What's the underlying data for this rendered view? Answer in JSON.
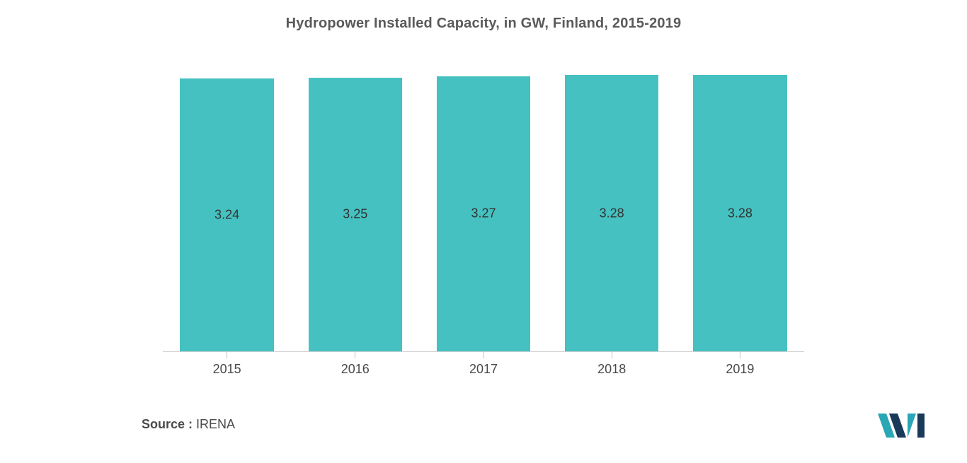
{
  "chart": {
    "type": "bar",
    "title": "Hydropower Installed Capacity, in GW, Finland, 2015-2019",
    "title_fontsize": 20,
    "title_color": "#5a5a5a",
    "categories": [
      "2015",
      "2016",
      "2017",
      "2018",
      "2019"
    ],
    "values": [
      3.24,
      3.25,
      3.27,
      3.28,
      3.28
    ],
    "value_labels": [
      "3.24",
      "3.25",
      "3.27",
      "3.28",
      "3.28"
    ],
    "bar_color": "#45c1c1",
    "bar_label_color": "#333333",
    "bar_label_fontsize": 18,
    "x_label_fontsize": 18,
    "x_label_color": "#4a4a4a",
    "background_color": "#ffffff",
    "axis_color": "#d0d0d0",
    "ylim": [
      0,
      3.35
    ],
    "bar_width_ratio": 0.73
  },
  "source": {
    "label": "Source :",
    "value": " IRENA",
    "fontsize": 18,
    "label_color": "#4a4a4a",
    "value_color": "#4a4a4a"
  },
  "logo": {
    "name": "mordor-intelligence-logo",
    "color1": "#2aa6b5",
    "color2": "#1a3a5a"
  }
}
